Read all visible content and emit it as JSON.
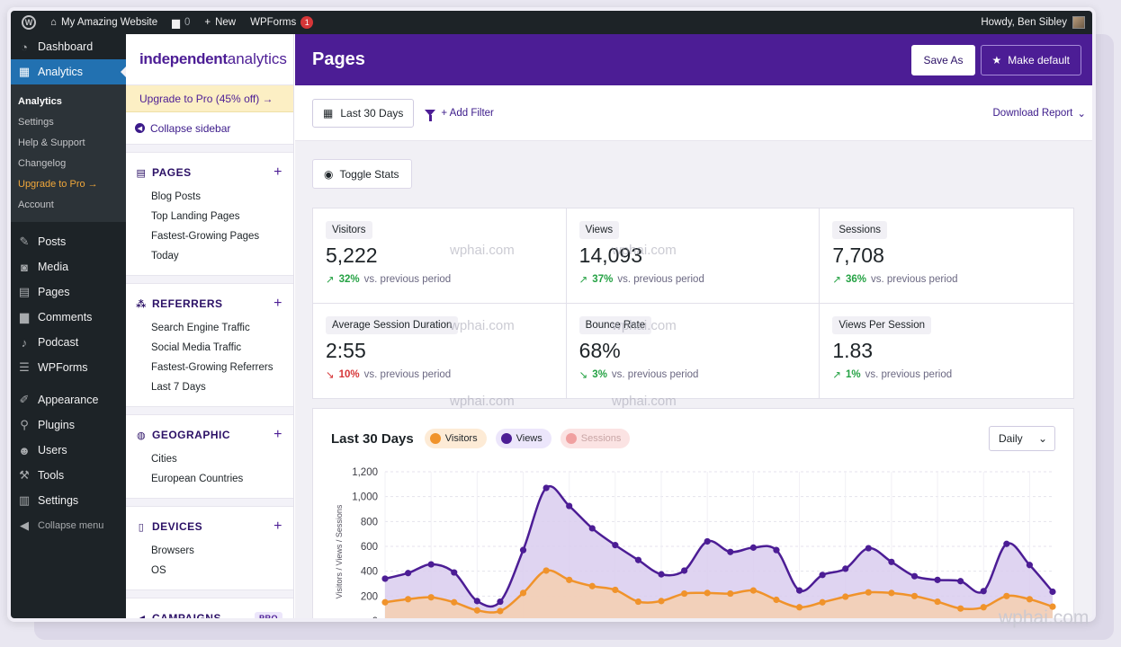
{
  "adminbar": {
    "site_name": "My Amazing Website",
    "comments_count": "0",
    "new_label": "New",
    "wpforms_label": "WPForms",
    "wpforms_badge": "1",
    "greeting": "Howdy, Ben Sibley"
  },
  "wpmenu": {
    "dashboard": "Dashboard",
    "analytics": "Analytics",
    "sub": [
      "Analytics",
      "Settings",
      "Help & Support",
      "Changelog",
      "Upgrade to Pro →",
      "Account"
    ],
    "items": [
      "Posts",
      "Media",
      "Pages",
      "Comments",
      "Podcast",
      "WPForms"
    ],
    "items2": [
      "Appearance",
      "Plugins",
      "Users",
      "Tools",
      "Settings"
    ],
    "collapse": "Collapse menu"
  },
  "ia": {
    "logo_bold": "independent",
    "logo_light": " analytics",
    "upgrade": "Upgrade to Pro (45% off) →",
    "collapse": "Collapse sidebar",
    "sections": {
      "pages": {
        "title": "PAGES",
        "items": [
          "Blog Posts",
          "Top Landing Pages",
          "Fastest-Growing Pages",
          "Today"
        ]
      },
      "referrers": {
        "title": "REFERRERS",
        "items": [
          "Search Engine Traffic",
          "Social Media Traffic",
          "Fastest-Growing Referrers",
          "Last 7 Days"
        ]
      },
      "geographic": {
        "title": "GEOGRAPHIC",
        "items": [
          "Cities",
          "European Countries"
        ]
      },
      "devices": {
        "title": "DEVICES",
        "items": [
          "Browsers",
          "OS"
        ]
      },
      "campaigns": {
        "title": "CAMPAIGNS",
        "badge": "PRO"
      }
    }
  },
  "main": {
    "title": "Pages",
    "save_as": "Save As",
    "make_default": "Make default",
    "date_range": "Last 30 Days",
    "add_filter": "+ Add Filter",
    "download": "Download Report",
    "toggle_stats": "Toggle Stats"
  },
  "stats": [
    {
      "label": "Visitors",
      "value": "5,222",
      "pct": "32%",
      "dir": "up",
      "cmp": "vs. previous period"
    },
    {
      "label": "Views",
      "value": "14,093",
      "pct": "37%",
      "dir": "up",
      "cmp": "vs. previous period"
    },
    {
      "label": "Sessions",
      "value": "7,708",
      "pct": "36%",
      "dir": "up",
      "cmp": "vs. previous period"
    },
    {
      "label": "Average Session Duration",
      "value": "2:55",
      "pct": "10%",
      "dir": "down",
      "cmp": "vs. previous period"
    },
    {
      "label": "Bounce Rate",
      "value": "68%",
      "pct": "3%",
      "dir": "down-good",
      "cmp": "vs. previous period"
    },
    {
      "label": "Views Per Session",
      "value": "1.83",
      "pct": "1%",
      "dir": "up",
      "cmp": "vs. previous period"
    }
  ],
  "chart_header": {
    "title": "Last 30 Days",
    "interval": "Daily"
  },
  "chart_data": {
    "type": "area",
    "title": "Last 30 Days",
    "ylabel": "Visitors / Views / Sessions",
    "ylim": [
      0,
      1200
    ],
    "yticks": [
      "0",
      "200",
      "400",
      "600",
      "800",
      "1,000",
      "1,200"
    ],
    "series": [
      {
        "name": "Visitors",
        "color": "#f0932b",
        "fill": "#f6cfb0",
        "enabled": true,
        "values": [
          150,
          175,
          190,
          150,
          85,
          80,
          225,
          405,
          330,
          280,
          250,
          155,
          160,
          220,
          225,
          220,
          245,
          170,
          110,
          150,
          195,
          230,
          225,
          200,
          155,
          100,
          110,
          200,
          175,
          115
        ]
      },
      {
        "name": "Views",
        "color": "#4c1d95",
        "fill": "#d9cdee",
        "enabled": true,
        "values": [
          340,
          385,
          455,
          390,
          160,
          155,
          570,
          1070,
          925,
          745,
          610,
          490,
          375,
          405,
          640,
          555,
          590,
          570,
          245,
          370,
          420,
          585,
          475,
          360,
          330,
          320,
          240,
          620,
          450,
          235
        ]
      },
      {
        "name": "Sessions",
        "color": "#f08a8a",
        "fill": "#fbdede",
        "enabled": false,
        "values": []
      }
    ]
  },
  "watermark": "wphai.com"
}
